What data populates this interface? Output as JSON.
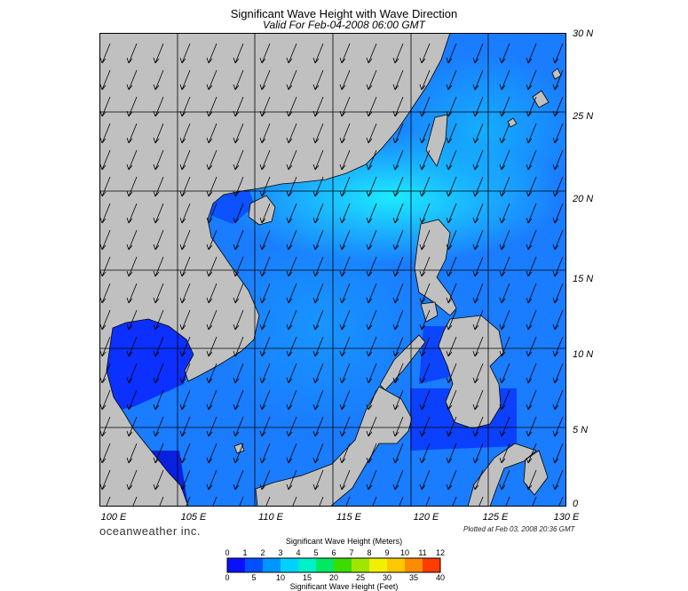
{
  "title": "Significant Wave Height with Wave Direction",
  "subtitle": "Valid For Feb-04-2008 06:00 GMT",
  "map": {
    "lon_range": [
      100,
      130
    ],
    "lat_range": [
      0,
      30
    ],
    "lon_labels": [
      "100 E",
      "105 E",
      "110 E",
      "115 E",
      "120 E",
      "125 E",
      "130 E"
    ],
    "lat_labels": [
      "30 N",
      "25 N",
      "20 N",
      "15 N",
      "10 N",
      "5 N",
      "0"
    ],
    "grid_lines": true,
    "land_color": "#c0c0c0",
    "sea_base_color": "#1a7cff",
    "arrow_color": "#000000",
    "wave_direction": "from north-east"
  },
  "branding": "oceanweather inc.",
  "plotted_note": "Plotted at Feb 03, 2008 20:36 GMT",
  "colorbar": {
    "title_meters": "Significant Wave Height (Meters)",
    "title_feet": "Significant Wave Height (Feet)",
    "meter_ticks": [
      "0",
      "1",
      "2",
      "3",
      "4",
      "5",
      "6",
      "7",
      "8",
      "9",
      "10",
      "11",
      "12"
    ],
    "feet_ticks": [
      "0",
      "5",
      "10",
      "15",
      "20",
      "25",
      "30",
      "35",
      "40"
    ],
    "colors": [
      "#0a10ff",
      "#0050ff",
      "#0096ff",
      "#00d2ff",
      "#00f0c8",
      "#00e864",
      "#3cdc00",
      "#a0e600",
      "#f0f000",
      "#ffc800",
      "#ff8c00",
      "#ff3c00"
    ]
  }
}
